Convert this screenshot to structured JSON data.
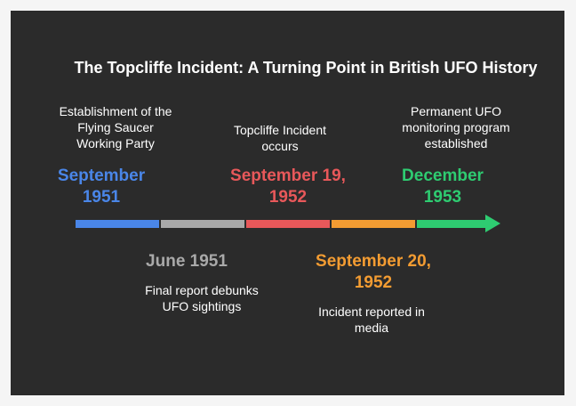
{
  "title": "The Topcliffe Incident: A Turning Point in British UFO History",
  "colors": {
    "background": "#2b2b2b",
    "blue": "#4a86e8",
    "gray": "#a9a9a9",
    "red": "#e8585a",
    "orange": "#f39c32",
    "green": "#2ecc71"
  },
  "events": [
    {
      "date": "September\n1951",
      "description": "Establishment of the\nFlying Saucer\nWorking Party",
      "position": "above",
      "color": "#4a86e8"
    },
    {
      "date": "June 1951",
      "description": "Final report debunks\nUFO sightings",
      "position": "below",
      "color": "#a9a9a9"
    },
    {
      "date": "September 19,\n1952",
      "description": "Topcliffe Incident\noccurs",
      "position": "above",
      "color": "#e8585a"
    },
    {
      "date": "September 20,\n1952",
      "description": "Incident reported in\nmedia",
      "position": "below",
      "color": "#f39c32"
    },
    {
      "date": "December\n1953",
      "description": "Permanent UFO\nmonitoring program\nestablished",
      "position": "above",
      "color": "#2ecc71"
    }
  ]
}
